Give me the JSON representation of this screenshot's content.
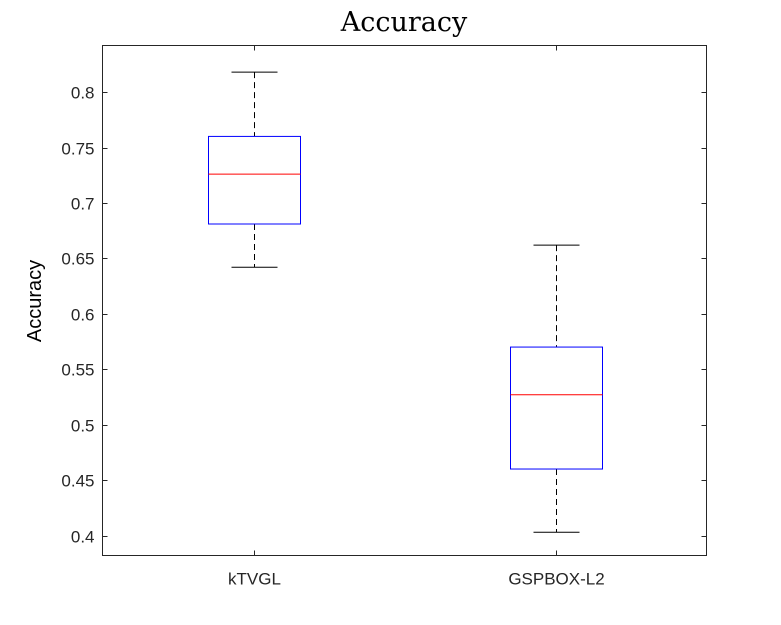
{
  "chart_data": {
    "type": "boxplot",
    "title": "Accuracy",
    "xlabel": "",
    "ylabel": "Accuracy",
    "ylim": [
      0.382,
      0.842
    ],
    "yticks": [
      0.4,
      0.45,
      0.5,
      0.55,
      0.6,
      0.65,
      0.7,
      0.75,
      0.8
    ],
    "ytick_labels": [
      "0.4",
      "0.45",
      "0.5",
      "0.55",
      "0.6",
      "0.65",
      "0.7",
      "0.75",
      "0.8"
    ],
    "grid": false,
    "categories": [
      "kTVGL",
      "GSPBOX-L2"
    ],
    "boxes": [
      {
        "category": "kTVGL",
        "whisker_low": 0.642,
        "q1": 0.681,
        "median": 0.726,
        "q3": 0.76,
        "whisker_high": 0.818
      },
      {
        "category": "GSPBOX-L2",
        "whisker_low": 0.403,
        "q1": 0.46,
        "median": 0.527,
        "q3": 0.57,
        "whisker_high": 0.662
      }
    ],
    "colors": {
      "box": "#0000ff",
      "median": "#ff0000",
      "whisker": "#000000",
      "axis": "#262626"
    }
  }
}
